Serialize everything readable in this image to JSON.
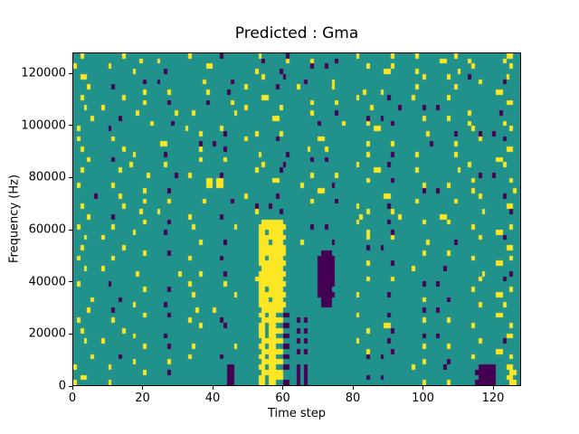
{
  "chart_data": {
    "type": "heatmap",
    "title": "Predicted : Gma",
    "xlabel": "Time step",
    "ylabel": "Frequency (Hz)",
    "xlim": [
      0,
      128
    ],
    "ylim": [
      0,
      128000
    ],
    "x_ticks": {
      "values": [
        0,
        20,
        40,
        60,
        80,
        100,
        120
      ],
      "labels": [
        "0",
        "20",
        "40",
        "60",
        "80",
        "100",
        "120"
      ]
    },
    "y_ticks": {
      "values": [
        0,
        20000,
        40000,
        60000,
        80000,
        100000,
        120000
      ],
      "labels": [
        "0",
        "20000",
        "40000",
        "60000",
        "80000",
        "100000",
        "120000"
      ]
    },
    "colors": {
      "mid": "#21918c",
      "high": "#fde725",
      "low": "#440154"
    },
    "colormap": "viridis",
    "grid": {
      "cols": 128,
      "rows": 64,
      "encoding": {
        ".": "mid (teal)",
        "1": "high (yellow)",
        "0": "low (purple)"
      },
      "row_order": "top (128000 Hz) to bottom (0 Hz)",
      "chunk_defs": {
        "a": "................",
        "b": "....1......0....",
        "c": ".1........0.....",
        "d": ".1.........1....",
        "e": "......1.....0...",
        "f": "..0.......1.....",
        "g": "..1..........1..",
        "h": "...1....1.......",
        "i": "....0...0.......",
        "j": "1.........1.....",
        "k": "......0......1..",
        "l": "....1......1....",
        "m": ".....1.......0..",
        "o": "..1...........1.",
        "q": "..11............",
        "s": ".........11.....",
        "v": "............11..",
        "w": ".0..........1...",
        "x": "......11........",
        "x2": "......11.11.....",
        "y1": ".....11111111...",
        "y2": ".....11.1111....",
        "y3": "......111111....",
        "y4": ".....111.111....",
        "y5": "....11111111....",
        "y6": ".....11.11..00..",
        "z3": ".......000......",
        "z4": "......0000......",
        "z5": "......00000.....",
        "z6": "0.0.............",
        "P2": "............00..",
        "R7": "...000000....11.",
        "R7b": "....00000...11.."
      },
      "rows_chunks": [
        [
          "o",
          "a",
          "c",
          "m",
          "a",
          "d",
          "g",
          "v"
        ],
        [
          "a",
          "h",
          "a",
          "k",
          "b",
          "a",
          "s",
          "d"
        ],
        [
          "j",
          "a",
          "x",
          "a",
          "i",
          "l",
          "a",
          "g"
        ],
        [
          "a",
          "c",
          "a",
          "b",
          "a",
          "s",
          "o",
          "a"
        ],
        [
          "q",
          "a",
          "a",
          "e",
          "a",
          "a",
          "l",
          "w"
        ],
        [
          "a",
          "i",
          "m",
          "a",
          "f",
          "a",
          "a",
          "b"
        ],
        [
          "b",
          "a",
          "a",
          "c",
          "j",
          "a",
          "g",
          "a"
        ],
        [
          "a",
          "l",
          "e",
          "a",
          "a",
          "h",
          "a",
          "s"
        ],
        [
          "o",
          "a",
          "a",
          "x",
          "a",
          "c",
          "d",
          "a"
        ],
        [
          "a",
          "b",
          "k",
          "a",
          "l",
          "a",
          "a",
          "v"
        ],
        [
          "h",
          "a",
          "a",
          "d",
          "a",
          "m",
          "i",
          "a"
        ],
        [
          "a",
          "g",
          "o",
          "a",
          "b",
          "a",
          "a",
          "c"
        ],
        [
          "m",
          "a",
          "a",
          "s",
          "a",
          "i",
          "l",
          "a"
        ],
        [
          "a",
          "e",
          "a",
          "a",
          "k",
          "b",
          "a",
          "d"
        ],
        [
          "c",
          "a",
          "j",
          "a",
          "a",
          "x",
          "a",
          "g"
        ],
        [
          "a",
          "a",
          "b",
          "l",
          "a",
          "a",
          "m",
          "i"
        ],
        [
          "d",
          "a",
          "a",
          "c",
          "x",
          "a",
          "a",
          "b"
        ],
        [
          "a",
          "s",
          "i",
          "a",
          "a",
          "l",
          "k",
          "a"
        ],
        [
          "o",
          "a",
          "b",
          "a",
          "h",
          "a",
          "a",
          "v"
        ],
        [
          "a",
          "c",
          "a",
          "m",
          "a",
          "b",
          "g",
          "a"
        ],
        [
          "b",
          "a",
          "l",
          "a",
          "i",
          "a",
          "a",
          "s"
        ],
        [
          "a",
          "j",
          "a",
          "e",
          "a",
          "c",
          "a",
          "d"
        ],
        [
          "g",
          "a",
          "a",
          "b",
          "a",
          "x",
          "o",
          "a"
        ],
        [
          "a",
          "m",
          "c",
          "a",
          "l",
          "a",
          "a",
          "i"
        ],
        [
          "a",
          "a",
          "x2",
          "s",
          "a",
          "b",
          "a",
          "g"
        ],
        [
          "d",
          "a",
          "x2",
          "a",
          "c",
          "a",
          "l",
          "a"
        ],
        [
          "a",
          "b",
          "a",
          "a",
          "x",
          "a",
          "i",
          "o"
        ],
        [
          "k",
          "a",
          "a",
          "c",
          "a",
          "s",
          "a",
          "b"
        ],
        [
          "a",
          "l",
          "m",
          "a",
          "b",
          "a",
          "g",
          "a"
        ],
        [
          "o",
          "a",
          "a",
          "i",
          "a",
          "c",
          "a",
          "v"
        ],
        [
          "a",
          "h",
          "a",
          "b",
          "a",
          "l",
          "a",
          "m"
        ],
        [
          "b",
          "a",
          "c",
          "a",
          "a",
          "g",
          "s",
          "a"
        ],
        [
          "a",
          "b",
          "a",
          "y3",
          "a",
          "c",
          "l",
          "a"
        ],
        [
          "d",
          "a",
          "o",
          "y1",
          "i",
          "a",
          "a",
          "g"
        ],
        [
          "a",
          "c",
          "a",
          "y2",
          "a",
          "b",
          "a",
          "s"
        ],
        [
          "h",
          "a",
          "a",
          "y1",
          "a",
          "l",
          "a",
          "b"
        ],
        [
          "a",
          "a",
          "b",
          "y4",
          "c",
          "a",
          "m",
          "a"
        ],
        [
          "o",
          "a",
          "a",
          "y1",
          "a",
          "i",
          "a",
          "v"
        ],
        [
          "a",
          "b",
          "a",
          "y1",
          "z3",
          "a",
          "l",
          "a"
        ],
        [
          "d",
          "a",
          "c",
          "y2",
          "z5",
          "a",
          "a",
          "g"
        ],
        [
          "a",
          "a",
          "a",
          "y1",
          "z5",
          "b",
          "a",
          "s"
        ],
        [
          "h",
          "a",
          "a",
          "y3",
          "z5",
          "a",
          "c",
          "a"
        ],
        [
          "a",
          "o",
          "b",
          "y1",
          "z5",
          "a",
          "a",
          "m"
        ],
        [
          "a",
          "a",
          "a",
          "y5",
          "z5",
          "l",
          "a",
          "b"
        ],
        [
          "c",
          "a",
          "d",
          "y1",
          "z5",
          "a",
          "i",
          "a"
        ],
        [
          "a",
          "b",
          "a",
          "y2",
          "z4",
          "a",
          "a",
          "g"
        ],
        [
          "a",
          "a",
          "o",
          "y1",
          "z5",
          "c",
          "a",
          "s"
        ],
        [
          "m",
          "a",
          "a",
          "y4",
          "z3",
          "a",
          "b",
          "a"
        ],
        [
          "a",
          "c",
          "a",
          "y1",
          "z3",
          "a",
          "a",
          "l"
        ],
        [
          "b",
          "a",
          "h",
          "y3",
          "a",
          "a",
          "i",
          "a"
        ],
        [
          "a",
          "b",
          "a",
          "y6",
          "a",
          "c",
          "a",
          "s"
        ],
        [
          "d",
          "a",
          "c",
          "y3",
          "z6",
          "a",
          "l",
          "a"
        ],
        [
          "a",
          "a",
          "b",
          "y6",
          "a",
          "s",
          "a",
          "g"
        ],
        [
          "o",
          "a",
          "a",
          "y2",
          "z6",
          "b",
          "a",
          "a"
        ],
        [
          "a",
          "c",
          "a",
          "y6",
          "a",
          "a",
          "i",
          "v"
        ],
        [
          "h",
          "a",
          "a",
          "y3",
          "z6",
          "c",
          "a",
          "b"
        ],
        [
          "a",
          "b",
          "o",
          "y6",
          "a",
          "a",
          "l",
          "a"
        ],
        [
          "a",
          "a",
          "a",
          "y3",
          "z6",
          "b",
          "a",
          "s"
        ],
        [
          "m",
          "a",
          "c",
          "y6",
          "a",
          "i",
          "a",
          "g"
        ],
        [
          "a",
          "d",
          "a",
          "y3",
          "a",
          "a",
          "b",
          "a"
        ],
        [
          "j",
          "a",
          "P2",
          "y6",
          "z6",
          "a",
          "c",
          "R7b"
        ],
        [
          "a",
          "b",
          "P2",
          "y3",
          "z6",
          "a",
          "a",
          "R7"
        ],
        [
          "q",
          "a",
          "P2",
          "y2",
          "z6",
          "i",
          "a",
          "R7b"
        ],
        [
          "j",
          "a",
          "P2",
          "y6",
          "z6",
          "a",
          "l",
          "R7"
        ]
      ]
    }
  }
}
